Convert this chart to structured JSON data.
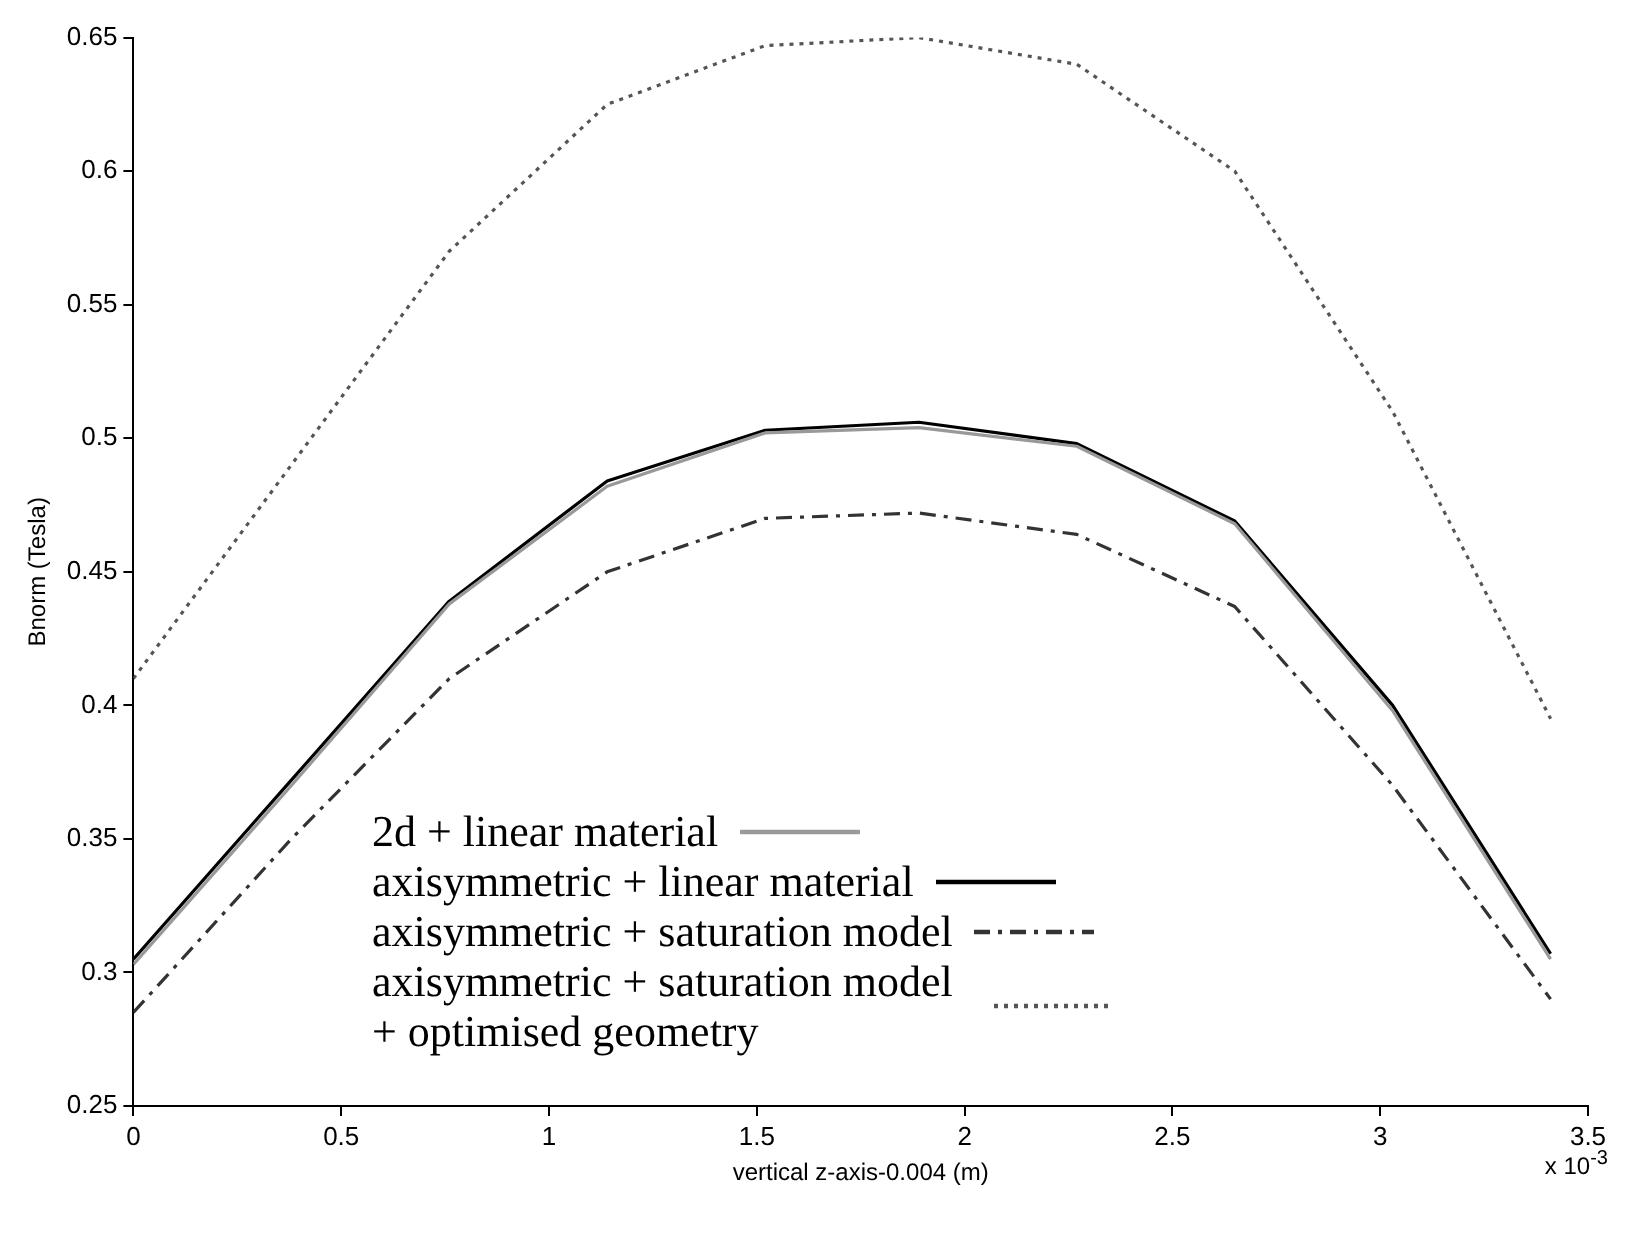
{
  "chart_data": {
    "type": "line",
    "xlabel": "vertical z-axis-0.004 (m)",
    "ylabel": "Bnorm (Tesla)",
    "x": [
      0,
      0.38,
      0.76,
      1.14,
      1.52,
      1.89,
      2.27,
      2.65,
      3.03,
      3.41
    ],
    "series": [
      {
        "name": "2d + linear material",
        "color": "#999999",
        "line_style": "solid",
        "values": [
          0.303,
          0.37,
          0.438,
          0.482,
          0.502,
          0.504,
          0.497,
          0.468,
          0.398,
          0.305
        ]
      },
      {
        "name": "axisymmetric + linear material",
        "color": "#000000",
        "line_style": "solid",
        "values": [
          0.305,
          0.372,
          0.439,
          0.484,
          0.503,
          0.506,
          0.498,
          0.469,
          0.4,
          0.307
        ]
      },
      {
        "name": "axisymmetric + saturation model",
        "color": "#333333",
        "line_style": "dashed",
        "values": [
          0.285,
          0.35,
          0.41,
          0.45,
          0.47,
          0.472,
          0.464,
          0.437,
          0.37,
          0.29
        ]
      },
      {
        "name": "axisymmetric + saturation model + optimised geometry",
        "color": "#555555",
        "line_style": "dotted",
        "values": [
          0.41,
          0.49,
          0.57,
          0.625,
          0.647,
          0.65,
          0.64,
          0.6,
          0.51,
          0.395
        ]
      }
    ],
    "xlim": [
      0,
      3.5
    ],
    "xticks": [
      0,
      0.5,
      1,
      1.5,
      2,
      2.5,
      3,
      3.5
    ],
    "ylim": [
      0.25,
      0.65
    ],
    "yticks": [
      0.25,
      0.3,
      0.35,
      0.4,
      0.45,
      0.5,
      0.55,
      0.6,
      0.65
    ],
    "annotations": [
      "x 10$^{-3}$"
    ],
    "grid": false,
    "legend": "bottom",
    "marker": "none"
  }
}
